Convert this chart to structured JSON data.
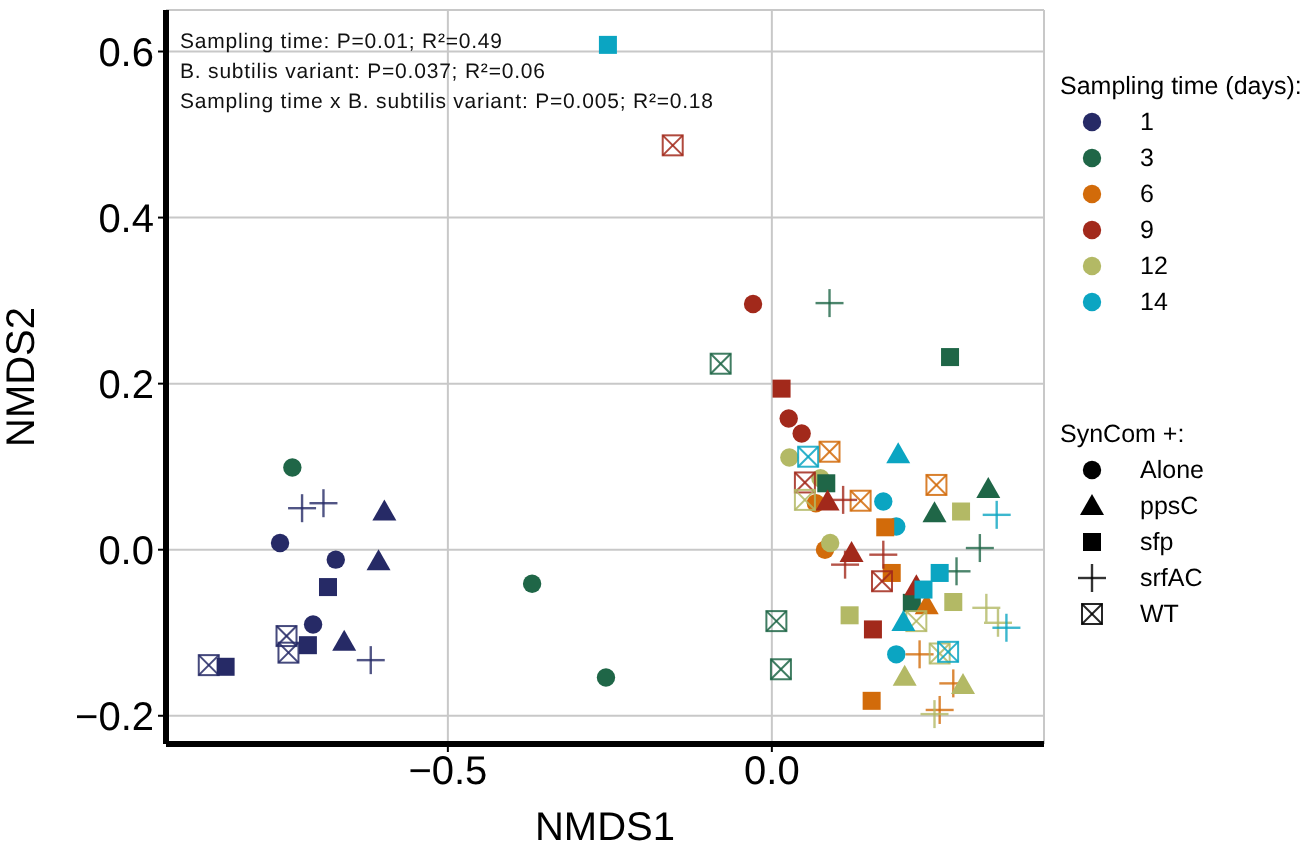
{
  "chart_data": {
    "type": "scatter",
    "xlabel": "NMDS1",
    "ylabel": "NMDS2",
    "legend_title": "Sampling time (days):",
    "legend": "right",
    "grid": true,
    "xlim": [
      -0.935,
      0.42
    ],
    "xticks": [
      {
        "value": -0.5,
        "label": "−0.5"
      },
      {
        "value": 0,
        "label": "0.0"
      }
    ],
    "ylim": [
      -0.234,
      0.65
    ],
    "yticks": [
      {
        "value": -0.2,
        "label": "−0.2"
      },
      {
        "value": 0,
        "label": "0.0"
      },
      {
        "value": 0.2,
        "label": "0.2"
      },
      {
        "value": 0.4,
        "label": "0.4"
      },
      {
        "value": 0.6,
        "label": "0.6"
      }
    ],
    "annotations": [
      "Sampling time: P=0.01; R²=0.49",
      "B. subtilis variant: P=0.037; R²=0.06",
      "Sampling time x B. subtilis variant: P=0.005; R²=0.18",
      "SynCom +:"
    ],
    "series": [
      {
        "name": "1",
        "color": "#262a66",
        "marker": "circle",
        "x": [
          -0.759,
          -0.673,
          -0.708
        ],
        "values": [
          0.008,
          -0.012,
          -0.09
        ]
      },
      {
        "name": "3",
        "color": "#1f6647",
        "marker": "circle",
        "x": [
          -0.74,
          -0.37,
          -0.256
        ],
        "values": [
          0.099,
          -0.041,
          -0.154
        ]
      },
      {
        "name": "6",
        "color": "#d26b0a",
        "marker": "circle",
        "x": [
          0.068,
          0.082
        ],
        "values": [
          0.056,
          0.0
        ]
      },
      {
        "name": "9",
        "color": "#a2291b",
        "marker": "circle",
        "x": [
          -0.029,
          0.026,
          0.046
        ],
        "values": [
          0.296,
          0.158,
          0.14
        ]
      },
      {
        "name": "12",
        "color": "#b3b965",
        "marker": "circle",
        "x": [
          0.027,
          0.075,
          0.09
        ],
        "values": [
          0.111,
          0.086,
          0.008
        ]
      },
      {
        "name": "14",
        "color": "#0ba5c2",
        "marker": "circle",
        "x": [
          0.172,
          0.192,
          0.192
        ],
        "values": [
          0.058,
          0.028,
          -0.126
        ]
      },
      {
        "color": "#262a66",
        "marker": "triangle",
        "x": [
          -0.598,
          -0.607,
          -0.66
        ],
        "values": [
          0.046,
          -0.014,
          -0.111
        ]
      },
      {
        "color": "#262a66",
        "marker": "square",
        "x": [
          -0.685,
          -0.716,
          -0.843
        ],
        "values": [
          -0.045,
          -0.115,
          -0.141
        ]
      },
      {
        "color": "#262a66",
        "marker": "cross",
        "x": [
          -0.725,
          -0.692,
          -0.619
        ],
        "values": [
          0.05,
          0.056,
          -0.133
        ]
      },
      {
        "color": "#262a66",
        "marker": "square-x",
        "x": [
          -0.749,
          -0.746,
          -0.869
        ],
        "values": [
          -0.104,
          -0.124,
          -0.139
        ]
      },
      {
        "color": "#1f6647",
        "marker": "triangle",
        "x": [
          0.334,
          0.251
        ],
        "values": [
          0.073,
          0.044
        ]
      },
      {
        "color": "#1f6647",
        "marker": "square",
        "x": [
          0.275,
          0.084,
          0.216
        ],
        "values": [
          0.232,
          0.08,
          -0.064
        ]
      },
      {
        "color": "#1f6647",
        "marker": "cross",
        "x": [
          0.089,
          0.321,
          0.285
        ],
        "values": [
          0.297,
          0.002,
          -0.026
        ]
      },
      {
        "color": "#1f6647",
        "marker": "square-x",
        "x": [
          -0.079,
          0.007,
          0.014
        ],
        "values": [
          0.224,
          -0.086,
          -0.144
        ]
      },
      {
        "color": "#d26b0a",
        "marker": "triangle",
        "x": [
          0.239
        ],
        "values": [
          -0.067
        ]
      },
      {
        "color": "#d26b0a",
        "marker": "square",
        "x": [
          0.175,
          0.185,
          0.154
        ],
        "values": [
          0.027,
          -0.028,
          -0.182
        ]
      },
      {
        "color": "#d26b0a",
        "marker": "cross",
        "x": [
          0.228,
          0.28,
          0.259
        ],
        "values": [
          -0.126,
          -0.161,
          -0.193
        ]
      },
      {
        "color": "#d26b0a",
        "marker": "square-x",
        "x": [
          0.089,
          0.137,
          0.254
        ],
        "values": [
          0.118,
          0.059,
          0.078
        ]
      },
      {
        "color": "#a2291b",
        "marker": "triangle",
        "x": [
          0.086,
          0.123,
          0.223
        ],
        "values": [
          0.058,
          -0.004,
          -0.044
        ]
      },
      {
        "color": "#a2291b",
        "marker": "square",
        "x": [
          0.015,
          0.156
        ],
        "values": [
          0.194,
          -0.096
        ]
      },
      {
        "color": "#a2291b",
        "marker": "cross",
        "x": [
          0.11,
          0.113,
          0.172
        ],
        "values": [
          0.06,
          -0.018,
          -0.006
        ]
      },
      {
        "color": "#a2291b",
        "marker": "square-x",
        "x": [
          -0.153,
          0.051,
          0.17
        ],
        "values": [
          0.487,
          0.081,
          -0.038
        ]
      },
      {
        "color": "#b3b965",
        "marker": "triangle",
        "x": [
          0.205,
          0.295
        ],
        "values": [
          -0.153,
          -0.163
        ]
      },
      {
        "color": "#b3b965",
        "marker": "square",
        "x": [
          0.292,
          0.28,
          0.12
        ],
        "values": [
          0.046,
          -0.063,
          -0.079
        ]
      },
      {
        "color": "#b3b965",
        "marker": "cross",
        "x": [
          0.331,
          0.349,
          0.251
        ],
        "values": [
          -0.07,
          -0.088,
          -0.198
        ]
      },
      {
        "color": "#b3b965",
        "marker": "square-x",
        "x": [
          0.051,
          0.223,
          0.259
        ],
        "values": [
          0.06,
          -0.086,
          -0.125
        ]
      },
      {
        "color": "#0ba5c2",
        "marker": "triangle",
        "x": [
          0.195,
          0.203
        ],
        "values": [
          0.115,
          -0.087
        ]
      },
      {
        "color": "#0ba5c2",
        "marker": "square",
        "x": [
          -0.253,
          0.259,
          0.234
        ],
        "values": [
          0.608,
          -0.028,
          -0.048
        ]
      },
      {
        "color": "#0ba5c2",
        "marker": "cross",
        "x": [
          0.347,
          0.362
        ],
        "values": [
          0.042,
          -0.094
        ]
      },
      {
        "color": "#0ba5c2",
        "marker": "square-x",
        "x": [
          0.056,
          0.272
        ],
        "values": [
          0.112,
          -0.123
        ]
      },
      {
        "name": "Alone",
        "color": "#000000",
        "marker": "circle"
      },
      {
        "name": "ppsC",
        "color": "#000000",
        "marker": "triangle"
      },
      {
        "name": "sfp",
        "color": "#000000",
        "marker": "square"
      },
      {
        "name": "srfAC",
        "color": "#000000",
        "marker": "cross"
      },
      {
        "name": "WT",
        "color": "#000000",
        "marker": "square-x"
      }
    ]
  }
}
